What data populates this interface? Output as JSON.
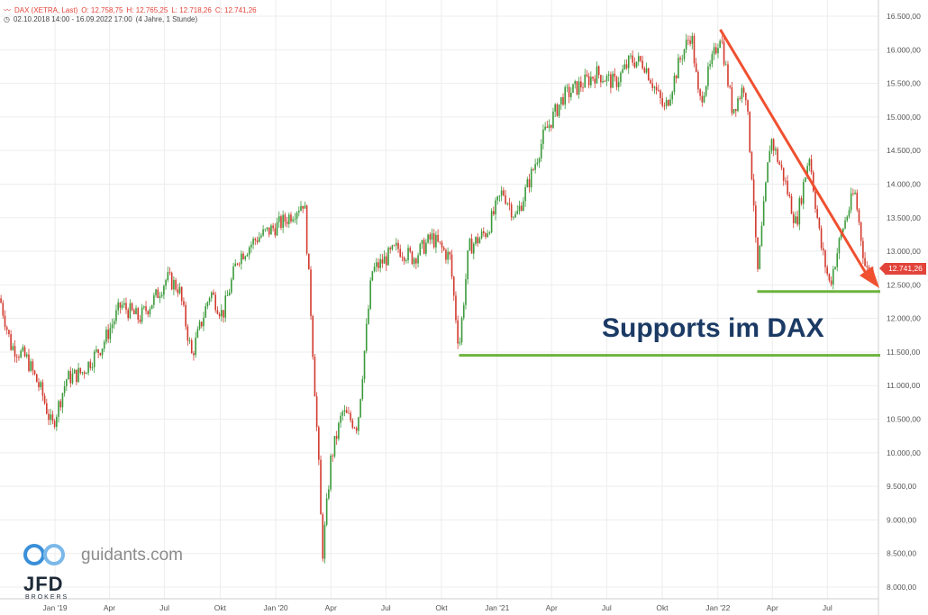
{
  "header": {
    "symbol_icon": "line-chart-icon",
    "instrument": "DAX (XETRA, Last)",
    "open": "O: 12.758,75",
    "high": "H: 12.765,25",
    "low": "L: 12.718,26",
    "close": "C: 12.741,26",
    "clock_icon": "clock-icon",
    "range": "02.10.2018 14:00 - 16.09.2022 17:00",
    "interval": "(4 Jahre, 1 Stunde)"
  },
  "price_label": "12.741,26",
  "annotation": "Supports im DAX",
  "branding": {
    "logo_text": "guidants.com",
    "broker": "JFD",
    "broker_sub": "BROKERS"
  },
  "colors": {
    "up": "#3a9a3a",
    "down": "#d23a2e",
    "trendline": "#f05030",
    "support": "#6db33f",
    "price_badge": "#e2443a",
    "annotation": "#1b3a64"
  },
  "chart_data": {
    "type": "candlestick",
    "y_axis": {
      "side": "right",
      "range": [
        7950,
        16600
      ],
      "ticks": [
        {
          "value": 16500,
          "label": "16.500,00"
        },
        {
          "value": 16000,
          "label": "16.000,00"
        },
        {
          "value": 15500,
          "label": "15.500,00"
        },
        {
          "value": 15000,
          "label": "15.000,00"
        },
        {
          "value": 14500,
          "label": "14.500,00"
        },
        {
          "value": 14000,
          "label": "14.000,00"
        },
        {
          "value": 13500,
          "label": "13.500,00"
        },
        {
          "value": 13000,
          "label": "13.000,00"
        },
        {
          "value": 12500,
          "label": "12.500,00"
        },
        {
          "value": 12000,
          "label": "12.000,00"
        },
        {
          "value": 11500,
          "label": "11.500,00"
        },
        {
          "value": 11000,
          "label": "11.000,00"
        },
        {
          "value": 10500,
          "label": "10.500,00"
        },
        {
          "value": 10000,
          "label": "10.000,00"
        },
        {
          "value": 9500,
          "label": "9.500,00"
        },
        {
          "value": 9000,
          "label": "9.000,00"
        },
        {
          "value": 8500,
          "label": "8.500,00"
        },
        {
          "value": 8000,
          "label": "8.000,00"
        }
      ]
    },
    "x_axis": {
      "start": "2018-10-02",
      "end": "2022-09-16",
      "ticks": [
        {
          "date": "2019-01-01",
          "label": "Jan '19"
        },
        {
          "date": "2019-04-01",
          "label": "Apr"
        },
        {
          "date": "2019-07-01",
          "label": "Jul"
        },
        {
          "date": "2019-10-01",
          "label": "Okt"
        },
        {
          "date": "2020-01-01",
          "label": "Jan '20"
        },
        {
          "date": "2020-04-01",
          "label": "Apr"
        },
        {
          "date": "2020-07-01",
          "label": "Jul"
        },
        {
          "date": "2020-10-01",
          "label": "Okt"
        },
        {
          "date": "2021-01-01",
          "label": "Jan '21"
        },
        {
          "date": "2021-04-01",
          "label": "Apr"
        },
        {
          "date": "2021-07-01",
          "label": "Jul"
        },
        {
          "date": "2021-10-01",
          "label": "Okt"
        },
        {
          "date": "2022-01-01",
          "label": "Jan '22"
        },
        {
          "date": "2022-04-01",
          "label": "Apr"
        },
        {
          "date": "2022-07-01",
          "label": "Jul"
        }
      ]
    },
    "price_path": [
      [
        "2018-10-02",
        12300
      ],
      [
        "2018-10-20",
        11600
      ],
      [
        "2018-11-15",
        11400
      ],
      [
        "2018-12-10",
        10900
      ],
      [
        "2018-12-27",
        10380
      ],
      [
        "2019-01-20",
        11100
      ],
      [
        "2019-02-15",
        11200
      ],
      [
        "2019-03-20",
        11600
      ],
      [
        "2019-04-20",
        12200
      ],
      [
        "2019-05-20",
        12000
      ],
      [
        "2019-06-15",
        12300
      ],
      [
        "2019-07-05",
        12600
      ],
      [
        "2019-07-25",
        12450
      ],
      [
        "2019-08-15",
        11450
      ],
      [
        "2019-09-15",
        12400
      ],
      [
        "2019-10-05",
        12050
      ],
      [
        "2019-10-30",
        12900
      ],
      [
        "2019-12-01",
        13200
      ],
      [
        "2019-12-20",
        13300
      ],
      [
        "2020-01-15",
        13450
      ],
      [
        "2020-02-17",
        13750
      ],
      [
        "2020-02-28",
        12100
      ],
      [
        "2020-03-12",
        9800
      ],
      [
        "2020-03-18",
        8450
      ],
      [
        "2020-04-01",
        9900
      ],
      [
        "2020-04-20",
        10600
      ],
      [
        "2020-05-15",
        10400
      ],
      [
        "2020-06-08",
        12700
      ],
      [
        "2020-07-20",
        13050
      ],
      [
        "2020-08-15",
        12900
      ],
      [
        "2020-09-15",
        13200
      ],
      [
        "2020-10-15",
        12900
      ],
      [
        "2020-10-30",
        11550
      ],
      [
        "2020-11-15",
        13050
      ],
      [
        "2020-12-15",
        13300
      ],
      [
        "2021-01-10",
        13900
      ],
      [
        "2021-02-01",
        13500
      ],
      [
        "2021-03-01",
        14200
      ],
      [
        "2021-03-20",
        14750
      ],
      [
        "2021-04-20",
        15300
      ],
      [
        "2021-05-15",
        15450
      ],
      [
        "2021-06-15",
        15650
      ],
      [
        "2021-07-15",
        15500
      ],
      [
        "2021-08-10",
        15850
      ],
      [
        "2021-09-01",
        15800
      ],
      [
        "2021-09-25",
        15300
      ],
      [
        "2021-10-05",
        15100
      ],
      [
        "2021-11-01",
        15900
      ],
      [
        "2021-11-18",
        16250
      ],
      [
        "2021-12-01",
        15200
      ],
      [
        "2021-12-20",
        15750
      ],
      [
        "2022-01-05",
        16250
      ],
      [
        "2022-01-25",
        15100
      ],
      [
        "2022-02-15",
        15500
      ],
      [
        "2022-03-01",
        13800
      ],
      [
        "2022-03-07",
        12600
      ],
      [
        "2022-03-29",
        14700
      ],
      [
        "2022-04-20",
        14100
      ],
      [
        "2022-05-10",
        13400
      ],
      [
        "2022-06-01",
        14450
      ],
      [
        "2022-06-20",
        13100
      ],
      [
        "2022-07-05",
        12500
      ],
      [
        "2022-07-25",
        13300
      ],
      [
        "2022-08-15",
        13900
      ],
      [
        "2022-09-01",
        12800
      ],
      [
        "2022-09-07",
        12650
      ],
      [
        "2022-09-16",
        12741
      ]
    ],
    "last_close": 12741.26,
    "annotations": [
      {
        "kind": "trendline",
        "from": [
          "2022-01-05",
          16300
        ],
        "to": [
          "2022-09-23",
          12900
        ]
      },
      {
        "kind": "arrow",
        "from": [
          "2022-09-23",
          12900
        ],
        "to": [
          "2022-10-05",
          12500
        ]
      },
      {
        "kind": "support",
        "from": [
          "2022-03-07",
          12400
        ],
        "to": [
          "2022-10-05",
          12400
        ]
      },
      {
        "kind": "support",
        "from": [
          "2020-10-30",
          11450
        ],
        "to": [
          "2022-10-05",
          11450
        ]
      }
    ]
  }
}
